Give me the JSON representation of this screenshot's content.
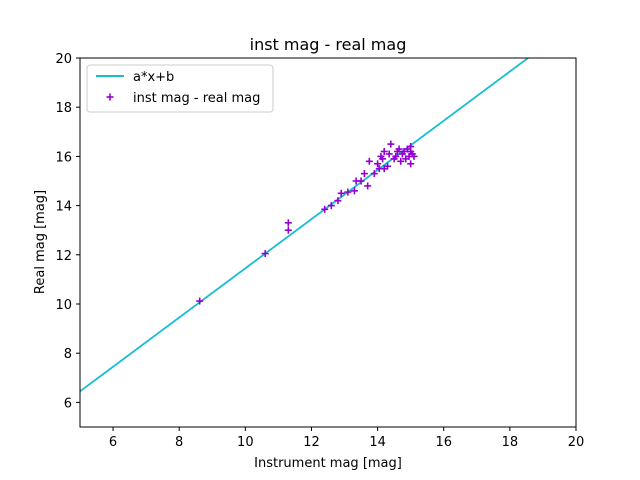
{
  "chart_data": {
    "type": "scatter",
    "title": "inst mag - real mag",
    "xlabel": "Instrument mag [mag]",
    "ylabel": "Real mag [mag]",
    "xlim": [
      5,
      20
    ],
    "ylim": [
      5,
      20
    ],
    "xticks": [
      6,
      8,
      10,
      12,
      14,
      16,
      18,
      20
    ],
    "yticks": [
      6,
      8,
      10,
      12,
      14,
      16,
      18,
      20
    ],
    "grid": false,
    "legend_position": "upper-left",
    "series": [
      {
        "name": "a*x+b",
        "kind": "line",
        "color": "#17becf",
        "slope": 1.0,
        "intercept": 1.45
      },
      {
        "name": "inst mag - real mag",
        "kind": "scatter",
        "marker": "plus",
        "color": "#9400d3",
        "points": [
          [
            8.62,
            10.12
          ],
          [
            10.6,
            12.05
          ],
          [
            11.3,
            13.0
          ],
          [
            11.3,
            13.3
          ],
          [
            12.4,
            13.85
          ],
          [
            12.6,
            14.0
          ],
          [
            12.8,
            14.2
          ],
          [
            12.9,
            14.5
          ],
          [
            13.1,
            14.55
          ],
          [
            13.3,
            14.6
          ],
          [
            13.35,
            15.0
          ],
          [
            13.5,
            15.0
          ],
          [
            13.6,
            15.3
          ],
          [
            13.7,
            14.8
          ],
          [
            13.75,
            15.8
          ],
          [
            13.9,
            15.3
          ],
          [
            14.0,
            15.7
          ],
          [
            14.05,
            15.5
          ],
          [
            14.1,
            16.0
          ],
          [
            14.15,
            15.9
          ],
          [
            14.2,
            16.2
          ],
          [
            14.2,
            15.5
          ],
          [
            14.3,
            15.6
          ],
          [
            14.35,
            16.1
          ],
          [
            14.4,
            16.5
          ],
          [
            14.5,
            15.9
          ],
          [
            14.55,
            16.0
          ],
          [
            14.6,
            16.2
          ],
          [
            14.65,
            16.3
          ],
          [
            14.7,
            15.8
          ],
          [
            14.75,
            16.1
          ],
          [
            14.8,
            16.2
          ],
          [
            14.85,
            15.9
          ],
          [
            14.9,
            16.3
          ],
          [
            14.95,
            16.0
          ],
          [
            15.0,
            16.4
          ],
          [
            15.0,
            15.7
          ],
          [
            15.05,
            16.1
          ],
          [
            15.1,
            16.0
          ],
          [
            15.0,
            16.2
          ]
        ]
      }
    ]
  }
}
